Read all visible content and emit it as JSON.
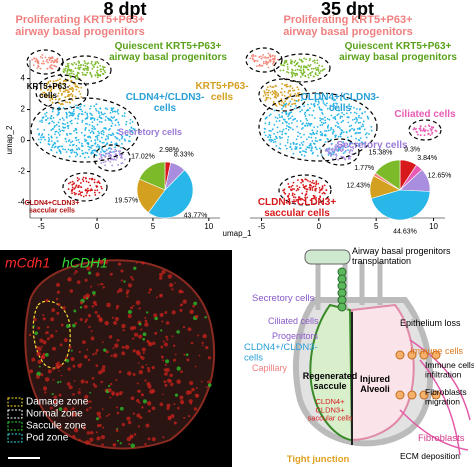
{
  "umap": {
    "xlabel": "umap_1",
    "ylabel": "umap_2",
    "xlim": [
      -6,
      11
    ],
    "ylim": [
      -5,
      5.2
    ],
    "xticks": [
      -5,
      0,
      5,
      10
    ],
    "yticks": [
      4,
      2,
      0,
      -2,
      -4
    ],
    "panels": [
      {
        "title": "8 dpt",
        "clusters": [
          {
            "name": [
              "Proliferating KRT5+P63+",
              "airway basal progenitors"
            ],
            "color": "#f4897b"
          },
          {
            "name": [
              "Quiescent KRT5+P63+",
              "airway basal progenitors"
            ],
            "color": "#7cba2a"
          },
          {
            "name": [
              "KRT5+P63-",
              "cells"
            ],
            "color": "#d4a020"
          },
          {
            "name": [
              "CLDN4+/CLDN3-",
              "cells"
            ],
            "color": "#29b6e8"
          },
          {
            "name": [
              "Secretory cells"
            ],
            "color": "#a98ee0"
          },
          {
            "name": [
              "CLDN4+CLDN3+",
              "saccular cells"
            ],
            "color": "#d7191c"
          }
        ],
        "pie": {
          "values": [
            2.98,
            8.33,
            43.77,
            19.57,
            17.02
          ],
          "value_labels": [
            "2.98%",
            "8.33%",
            "43.77%",
            "19.57%",
            "17.02%"
          ],
          "colors": [
            "#d7191c",
            "#a98ee0",
            "#29b6e8",
            "#d4a020",
            "#7cba2a"
          ]
        }
      },
      {
        "title": "35 dpt",
        "clusters": [
          {
            "name": [
              "Proliferating KRT5+P63+",
              "airway basal progenitors"
            ],
            "color": "#f4897b"
          },
          {
            "name": [
              "Quiescent KRT5+P63+",
              "airway basal progenitors"
            ],
            "color": "#7cba2a"
          },
          {
            "name": [
              "KRT5+P63-",
              "cells"
            ],
            "color": "#d4a020"
          },
          {
            "name": [
              "CLDN4+/CLDN3-",
              "cells"
            ],
            "color": "#29b6e8"
          },
          {
            "name": [
              "Secretory cells"
            ],
            "color": "#a98ee0"
          },
          {
            "name": [
              "Ciliated cells"
            ],
            "color": "#e85bb5"
          },
          {
            "name": [
              "CLDN4+CLDN3+",
              "saccular cells"
            ],
            "color": "#d7191c"
          }
        ],
        "pie": {
          "values": [
            9.3,
            3.84,
            12.65,
            44.63,
            12.43,
            1.77,
            15.38
          ],
          "value_labels": [
            "9.3%",
            "3.84%",
            "12.65%",
            "44.63%",
            "12.43%",
            "1.77%",
            "15.38%"
          ],
          "colors": [
            "#d7191c",
            "#e85bb5",
            "#a98ee0",
            "#29b6e8",
            "#d4a020",
            "#f4897b",
            "#7cba2a"
          ]
        }
      }
    ]
  },
  "microscopy": {
    "channels": [
      {
        "name": "mCdh1",
        "color": "#ff2a2a"
      },
      {
        "name": "hCDH1",
        "color": "#33dd33"
      }
    ],
    "legend": [
      {
        "label": "Damage zone",
        "color": "#ffe135"
      },
      {
        "label": "Normal zone",
        "color": "#ffffff"
      },
      {
        "label": "Saccule zone",
        "color": "#33dd33"
      },
      {
        "label": "Pod zone",
        "color": "#33dddd"
      }
    ]
  },
  "diagram": {
    "labels": {
      "transplant": [
        "Airway basal progenitors",
        "transplantation"
      ],
      "secretory": [
        "Secretory cells"
      ],
      "ciliated": [
        "Ciliated cells"
      ],
      "progenitors": [
        "Progenitors"
      ],
      "cldn": [
        "CLDN4+/CLDN3-",
        "cells"
      ],
      "capillary": [
        "Capillary"
      ],
      "regenerated": [
        "Regenerated",
        "saccule"
      ],
      "saccular": [
        "CLDN4+",
        "CLDN3+",
        "saccular cells"
      ],
      "tight": [
        "Tight junction"
      ],
      "injured": [
        "Injured",
        "Alveoli"
      ],
      "epithelium": [
        "Epithelium loss"
      ],
      "immune": [
        "Immune cells"
      ],
      "infiltration": [
        "Immune cells",
        "infiltration"
      ],
      "fibmig": [
        "Fibroblasts",
        "migration"
      ],
      "fibroblasts": [
        "Fibroblasts"
      ],
      "ecm": [
        "ECM deposition"
      ]
    }
  }
}
